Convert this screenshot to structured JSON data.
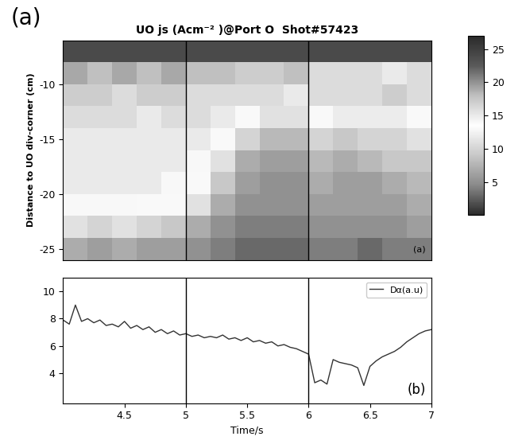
{
  "chart_data": [
    {
      "type": "heatmap",
      "figure_label": "(a)",
      "title": "UO js (Acm⁻² )@Port O  Shot#57423",
      "y_label": "Distance to UO div-corner (cm)",
      "annotations": [
        {
          "text": "(a)"
        }
      ],
      "x_edges": [
        4.0,
        4.2,
        4.4,
        4.6,
        4.8,
        5.0,
        5.2,
        5.4,
        5.6,
        5.8,
        6.0,
        6.2,
        6.4,
        6.6,
        6.8,
        7.0
      ],
      "y_edges": [
        -26,
        -24,
        -22,
        -20,
        -18,
        -16,
        -14,
        -12,
        -10,
        -8,
        -6
      ],
      "cells": [
        [
          7,
          6,
          7,
          6,
          6,
          5,
          4,
          3,
          3,
          3,
          4,
          4,
          3,
          4,
          4
        ],
        [
          11,
          10,
          11,
          10,
          9,
          7,
          5,
          4,
          4,
          4,
          5,
          5,
          5,
          5,
          6
        ],
        [
          14,
          14,
          14,
          13,
          13,
          11,
          7,
          5,
          5,
          5,
          6,
          6,
          6,
          6,
          7
        ],
        [
          15,
          15,
          15,
          15,
          14,
          13,
          9,
          6,
          5,
          5,
          7,
          6,
          6,
          7,
          8
        ],
        [
          15,
          15,
          15,
          15,
          15,
          14,
          11,
          7,
          6,
          6,
          8,
          7,
          8,
          9,
          9
        ],
        [
          15,
          15,
          15,
          15,
          15,
          15,
          13,
          10,
          8,
          8,
          10,
          9,
          10,
          10,
          11
        ],
        [
          16,
          16,
          16,
          15,
          16,
          16,
          15,
          13,
          11,
          11,
          13,
          12,
          12,
          12,
          13
        ],
        [
          17,
          17,
          16,
          17,
          17,
          16,
          16,
          16,
          16,
          15,
          16,
          16,
          16,
          17,
          16
        ],
        [
          19,
          18,
          19,
          18,
          19,
          18,
          18,
          17,
          17,
          18,
          16,
          16,
          16,
          15,
          16
        ],
        [
          24,
          24,
          24,
          24,
          24,
          24,
          24,
          24,
          24,
          24,
          24,
          24,
          24,
          24,
          24
        ]
      ],
      "colorbar": {
        "range": [
          0,
          27
        ],
        "ticks": [
          5,
          10,
          15,
          20,
          25
        ]
      },
      "xlim": [
        4.0,
        7.0
      ],
      "ylim": [
        -26,
        -6
      ],
      "yticks": [
        -10,
        -15,
        -20,
        -25
      ],
      "tick_labels": "y",
      "vlines": [
        5,
        6
      ]
    },
    {
      "type": "line",
      "x_label": "Time/s",
      "annotations": [
        {
          "text": "(b)"
        }
      ],
      "x": [
        4.0,
        4.05,
        4.1,
        4.15,
        4.2,
        4.25,
        4.3,
        4.35,
        4.4,
        4.45,
        4.5,
        4.55,
        4.6,
        4.65,
        4.7,
        4.75,
        4.8,
        4.85,
        4.9,
        4.95,
        5.0,
        5.05,
        5.1,
        5.15,
        5.2,
        5.25,
        5.3,
        5.35,
        5.4,
        5.45,
        5.5,
        5.55,
        5.6,
        5.65,
        5.7,
        5.75,
        5.8,
        5.85,
        5.9,
        5.95,
        6.0,
        6.05,
        6.1,
        6.15,
        6.2,
        6.25,
        6.3,
        6.35,
        6.4,
        6.45,
        6.5,
        6.55,
        6.6,
        6.65,
        6.7,
        6.75,
        6.8,
        6.85,
        6.9,
        6.95,
        7.0
      ],
      "series": [
        {
          "name": "Dα(a.u)",
          "color": "#333333",
          "values": [
            7.9,
            7.6,
            9.0,
            7.8,
            8.0,
            7.7,
            7.9,
            7.5,
            7.6,
            7.4,
            7.8,
            7.3,
            7.5,
            7.2,
            7.4,
            7.0,
            7.2,
            6.9,
            7.1,
            6.8,
            6.9,
            6.7,
            6.8,
            6.6,
            6.7,
            6.6,
            6.8,
            6.5,
            6.6,
            6.4,
            6.6,
            6.3,
            6.4,
            6.2,
            6.3,
            6.0,
            6.1,
            5.9,
            5.8,
            5.6,
            5.4,
            3.3,
            3.5,
            3.2,
            5.0,
            4.8,
            4.7,
            4.6,
            4.4,
            3.1,
            4.5,
            4.9,
            5.2,
            5.4,
            5.6,
            5.9,
            6.3,
            6.6,
            6.9,
            7.1,
            7.2
          ]
        }
      ],
      "xlim": [
        4.0,
        7.0
      ],
      "xticks": [
        4.5,
        5,
        5.5,
        6,
        6.5,
        7
      ],
      "ylim": [
        1.8,
        11
      ],
      "yticks": [
        4,
        6,
        8,
        10
      ],
      "legend": "upper right",
      "vlines": [
        5,
        6
      ]
    }
  ]
}
